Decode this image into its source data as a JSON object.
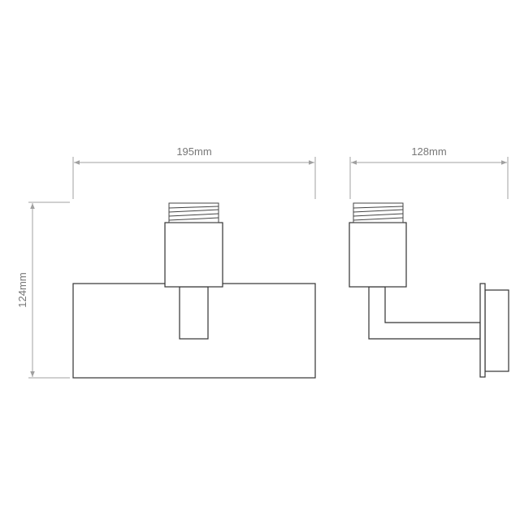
{
  "dimensions": {
    "front_width": "195mm",
    "side_depth": "128mm",
    "height": "124mm"
  },
  "colors": {
    "dimension_lines": "#a0a0a0",
    "outline": "#333333"
  }
}
